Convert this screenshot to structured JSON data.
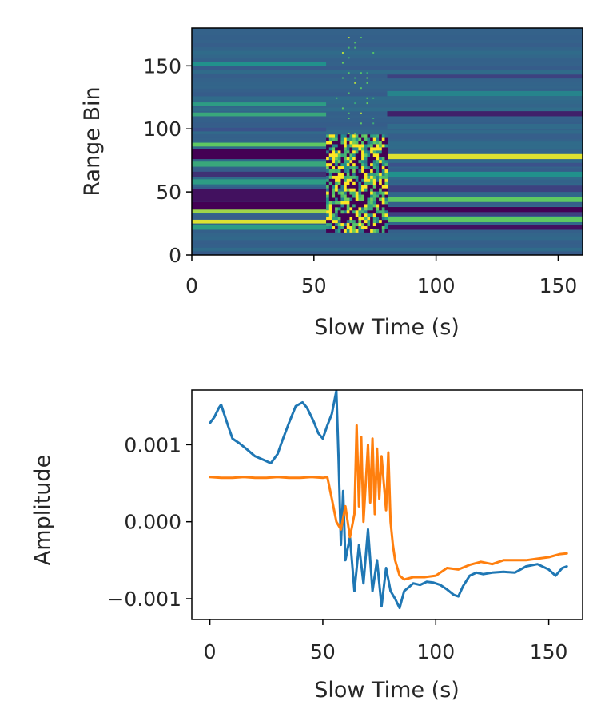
{
  "chart_data": [
    {
      "type": "heatmap",
      "colormap": "viridis",
      "xlabel": "Slow Time (s)",
      "ylabel": "Range Bin",
      "xlim": [
        0,
        160
      ],
      "ylim": [
        0,
        180
      ],
      "xticks": [
        "0",
        "50",
        "100",
        "150"
      ],
      "yticks": [
        "0",
        "50",
        "100",
        "150"
      ],
      "xtick_values": [
        0,
        50,
        100,
        150
      ],
      "ytick_values": [
        0,
        50,
        100,
        150
      ],
      "bands_before": [
        {
          "range_bin": [
            20,
            24
          ],
          "level": 0.55
        },
        {
          "range_bin": [
            25,
            28
          ],
          "level": 0.95
        },
        {
          "range_bin": [
            28,
            32
          ],
          "level": 0.3
        },
        {
          "range_bin": [
            33,
            36
          ],
          "level": 0.85
        },
        {
          "range_bin": [
            36,
            42
          ],
          "level": 0.0
        },
        {
          "range_bin": [
            42,
            52
          ],
          "level": 0.05
        },
        {
          "range_bin": [
            56,
            60
          ],
          "level": 0.55
        },
        {
          "range_bin": [
            62,
            66
          ],
          "level": 0.15
        },
        {
          "range_bin": [
            70,
            74
          ],
          "level": 0.6
        },
        {
          "range_bin": [
            76,
            84
          ],
          "level": 0.0
        },
        {
          "range_bin": [
            86,
            89
          ],
          "level": 0.75
        },
        {
          "range_bin": [
            98,
            101
          ],
          "level": 0.25
        },
        {
          "range_bin": [
            110,
            113
          ],
          "level": 0.6
        },
        {
          "range_bin": [
            118,
            121
          ],
          "level": 0.55
        },
        {
          "range_bin": [
            150,
            153
          ],
          "level": 0.5
        }
      ],
      "bands_after": [
        {
          "range_bin": [
            20,
            24
          ],
          "level": 0.05
        },
        {
          "range_bin": [
            26,
            30
          ],
          "level": 0.75
        },
        {
          "range_bin": [
            31,
            34
          ],
          "level": 0.2
        },
        {
          "range_bin": [
            34,
            38
          ],
          "level": 0.0
        },
        {
          "range_bin": [
            42,
            46
          ],
          "level": 0.75
        },
        {
          "range_bin": [
            50,
            55
          ],
          "level": 0.2
        },
        {
          "range_bin": [
            62,
            66
          ],
          "level": 0.5
        },
        {
          "range_bin": [
            70,
            73
          ],
          "level": 0.25
        },
        {
          "range_bin": [
            76,
            80
          ],
          "level": 0.95
        },
        {
          "range_bin": [
            92,
            96
          ],
          "level": 0.3
        },
        {
          "range_bin": [
            100,
            104
          ],
          "level": 0.35
        },
        {
          "range_bin": [
            110,
            114
          ],
          "level": 0.1
        },
        {
          "range_bin": [
            126,
            130
          ],
          "level": 0.45
        },
        {
          "range_bin": [
            140,
            143
          ],
          "level": 0.2
        }
      ],
      "background_level": 0.32,
      "disturbance": {
        "x": [
          55,
          80
        ],
        "range_bin": [
          18,
          95
        ]
      }
    },
    {
      "type": "line",
      "xlabel": "Slow Time (s)",
      "ylabel": "Amplitude",
      "xlim": [
        -8,
        165
      ],
      "ylim": [
        -0.00127,
        0.00171
      ],
      "xticks": [
        "0",
        "50",
        "100",
        "150"
      ],
      "yticks": [
        "−0.001",
        "0.000",
        "0.001"
      ],
      "xtick_values": [
        0,
        50,
        100,
        150
      ],
      "ytick_values": [
        -0.001,
        0.0,
        0.001
      ],
      "series": [
        {
          "color": "#1f77b4",
          "x": [
            0,
            2,
            4,
            5,
            8,
            10,
            13,
            16,
            20,
            24,
            27,
            30,
            32,
            35,
            38,
            41,
            43,
            46,
            48,
            50,
            52,
            54,
            56,
            57,
            58,
            59,
            60,
            62,
            64,
            66,
            68,
            70,
            72,
            74,
            76,
            78,
            80,
            82,
            84,
            86,
            88,
            90,
            93,
            96,
            99,
            102,
            105,
            108,
            110,
            112,
            115,
            118,
            121,
            125,
            130,
            135,
            140,
            145,
            150,
            153,
            156,
            158
          ],
          "y": [
            0.00128,
            0.00136,
            0.00148,
            0.00152,
            0.00125,
            0.00108,
            0.00102,
            0.00095,
            0.00085,
            0.0008,
            0.00076,
            0.00088,
            0.00105,
            0.00128,
            0.0015,
            0.00155,
            0.00148,
            0.0013,
            0.00115,
            0.00108,
            0.00125,
            0.0014,
            0.0017,
            0.0008,
            -0.0003,
            0.0004,
            -0.0005,
            -0.0002,
            -0.0009,
            -0.0003,
            -0.0008,
            -0.0001,
            -0.0009,
            -0.0005,
            -0.0011,
            -0.0006,
            -0.0009,
            -0.001,
            -0.00112,
            -0.0009,
            -0.00085,
            -0.0008,
            -0.00082,
            -0.00078,
            -0.00079,
            -0.00082,
            -0.00088,
            -0.00095,
            -0.00097,
            -0.00084,
            -0.0007,
            -0.00066,
            -0.00068,
            -0.00066,
            -0.00065,
            -0.00066,
            -0.00058,
            -0.00055,
            -0.00062,
            -0.0007,
            -0.0006,
            -0.00058
          ]
        },
        {
          "color": "#ff7f0e",
          "x": [
            0,
            5,
            10,
            15,
            20,
            25,
            30,
            35,
            40,
            45,
            50,
            52,
            54,
            56,
            58,
            60,
            62,
            64,
            65,
            66,
            67,
            68,
            70,
            71,
            72,
            73,
            74,
            75,
            76,
            78,
            79,
            80,
            81,
            82,
            84,
            86,
            90,
            95,
            100,
            105,
            110,
            115,
            120,
            125,
            130,
            135,
            140,
            145,
            150,
            155,
            158
          ],
          "y": [
            0.00058,
            0.00057,
            0.00057,
            0.00058,
            0.00057,
            0.00057,
            0.00058,
            0.00057,
            0.00057,
            0.00058,
            0.00057,
            0.00058,
            0.0003,
            0.0,
            -0.0001,
            0.0002,
            -0.0002,
            0.0001,
            0.00125,
            0.0002,
            0.0011,
            0.0,
            0.001,
            0.00025,
            0.00108,
            0.0001,
            0.00095,
            0.0003,
            0.00085,
            0.00015,
            0.0009,
            0.0,
            -0.0003,
            -0.0005,
            -0.0007,
            -0.00075,
            -0.00072,
            -0.00072,
            -0.0007,
            -0.0006,
            -0.00062,
            -0.00056,
            -0.00052,
            -0.00055,
            -0.0005,
            -0.0005,
            -0.0005,
            -0.00048,
            -0.00046,
            -0.00042,
            -0.00041
          ]
        }
      ]
    }
  ]
}
